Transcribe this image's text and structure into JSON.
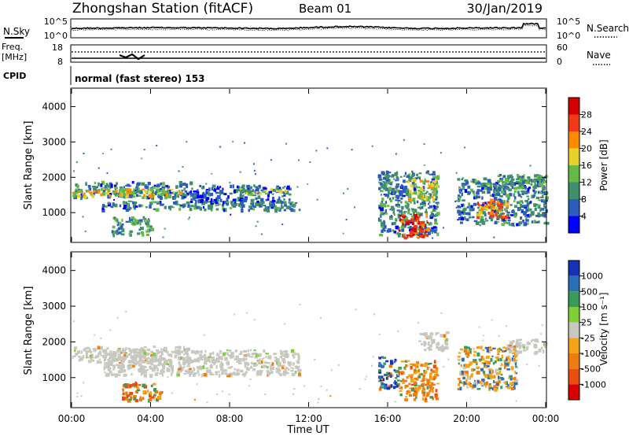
{
  "header": {
    "station": "Zhongshan Station (fitACF)",
    "beam": "Beam 01",
    "date": "30/Jan/2019"
  },
  "strips": {
    "nsky_label": "N.Sky",
    "nsearch_label": "N.Search",
    "noise_top_tick": "10^5",
    "noise_bottom_tick": "10^0",
    "freq_label_1": "Freq.",
    "freq_label_2": "[MHz]",
    "freq_ticks": [
      "18",
      "8"
    ],
    "nave_label": "Nave",
    "nave_ticks": [
      "60",
      "0"
    ],
    "cpid_label": "CPID",
    "cpid_text": "normal (fast stereo) 153"
  },
  "chart_data": [
    {
      "type": "heatmap",
      "title": "",
      "quantity": "Power",
      "ylabel": "Slant Range [km]",
      "ylim": [
        180,
        4500
      ],
      "y_ticks": [
        1000,
        2000,
        3000,
        4000
      ],
      "xlabel": "",
      "colorbar_label": "Power [dB]",
      "colorbar_ticks": [
        "4",
        "8",
        "12",
        "16",
        "20",
        "24",
        "28"
      ],
      "colorbar_range": [
        0,
        30
      ],
      "colorbar_colors": [
        "#0000ff",
        "#2c5dbe",
        "#3e8f6a",
        "#64ba47",
        "#e8d12b",
        "#ff8c00",
        "#f03a17",
        "#d40000"
      ],
      "regions": [
        {
          "t": [
            0.0,
            6.0
          ],
          "r": [
            1450,
            1900
          ],
          "level": 8
        },
        {
          "t": [
            0.0,
            5.5
          ],
          "r": [
            1500,
            1700
          ],
          "level": 16
        },
        {
          "t": [
            1.5,
            11.5
          ],
          "r": [
            1100,
            1350
          ],
          "level": 8
        },
        {
          "t": [
            6.0,
            11.0
          ],
          "r": [
            1300,
            1800
          ],
          "level": 6
        },
        {
          "t": [
            8.5,
            11.0
          ],
          "r": [
            1550,
            1700
          ],
          "level": 14
        },
        {
          "t": [
            2.0,
            4.0
          ],
          "r": [
            400,
            900
          ],
          "level": 10
        },
        {
          "t": [
            15.5,
            18.5
          ],
          "r": [
            400,
            2200
          ],
          "level": 8
        },
        {
          "t": [
            16.5,
            18.0
          ],
          "r": [
            300,
            1000
          ],
          "level": 26
        },
        {
          "t": [
            17.0,
            18.5
          ],
          "r": [
            1400,
            2000
          ],
          "level": 16
        },
        {
          "t": [
            19.5,
            24.0
          ],
          "r": [
            700,
            2000
          ],
          "level": 8
        },
        {
          "t": [
            20.5,
            22.0
          ],
          "r": [
            900,
            1400
          ],
          "level": 22
        },
        {
          "t": [
            21.5,
            24.0
          ],
          "r": [
            1700,
            2100
          ],
          "level": 10
        }
      ]
    },
    {
      "type": "heatmap",
      "title": "",
      "quantity": "Velocity",
      "ylabel": "Slant Range [km]",
      "ylim": [
        180,
        4500
      ],
      "y_ticks": [
        1000,
        2000,
        3000,
        4000
      ],
      "xlabel": "Time UT",
      "x_ticks": [
        "00:00",
        "04:00",
        "08:00",
        "12:00",
        "16:00",
        "20:00",
        "00:00"
      ],
      "xlim_hours": [
        0,
        24
      ],
      "colorbar_label": "Velocity [m s⁻¹]",
      "colorbar_ticks": [
        "1000",
        "500",
        "100",
        "25",
        "-25",
        "-100",
        "-500",
        "-1000"
      ],
      "colorbar_colors": [
        "#1431b8",
        "#2c6db8",
        "#3a9a5a",
        "#7ecf3a",
        "#c8c8c0",
        "#f5a31a",
        "#f07c10",
        "#e94e0e",
        "#d80000"
      ],
      "regions": [
        {
          "t": [
            0.0,
            6.0
          ],
          "r": [
            1450,
            1900
          ],
          "class": "ground"
        },
        {
          "t": [
            1.5,
            11.5
          ],
          "r": [
            1100,
            1800
          ],
          "class": "ground"
        },
        {
          "t": [
            2.5,
            4.5
          ],
          "r": [
            400,
            900
          ],
          "class": "neg_large"
        },
        {
          "t": [
            15.5,
            16.5
          ],
          "r": [
            700,
            1600
          ],
          "class": "pos_mixed"
        },
        {
          "t": [
            16.5,
            18.5
          ],
          "r": [
            400,
            1500
          ],
          "class": "neg_large"
        },
        {
          "t": [
            17.5,
            19.0
          ],
          "r": [
            1800,
            2300
          ],
          "class": "ground"
        },
        {
          "t": [
            19.5,
            22.5
          ],
          "r": [
            700,
            1900
          ],
          "class": "neg_mixed"
        },
        {
          "t": [
            22.0,
            24.0
          ],
          "r": [
            1700,
            2100
          ],
          "class": "ground"
        }
      ]
    }
  ]
}
